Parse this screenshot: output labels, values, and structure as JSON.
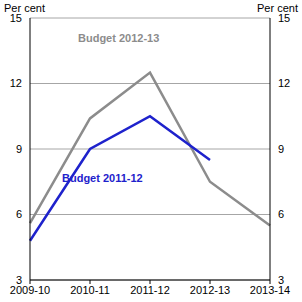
{
  "chart_data": {
    "type": "line",
    "y_label": "Per cent",
    "y2_label": "Per cent",
    "categories": [
      "2009-10",
      "2010-11",
      "2011-12",
      "2012-13",
      "2013-14"
    ],
    "series": [
      {
        "name": "Budget 2012-13",
        "color": "#8c8c8c",
        "values": [
          5.6,
          10.4,
          12.5,
          7.5,
          5.5
        ]
      },
      {
        "name": "Budget 2011-12",
        "color": "#1e22cc",
        "values": [
          4.8,
          9.0,
          10.5,
          8.5,
          null
        ]
      }
    ],
    "ylim": [
      3,
      15
    ],
    "yticks": [
      3,
      6,
      9,
      12,
      15
    ],
    "y2lim": [
      3,
      15
    ],
    "y2ticks": [
      3,
      6,
      9,
      12,
      15
    ],
    "grid": true
  }
}
